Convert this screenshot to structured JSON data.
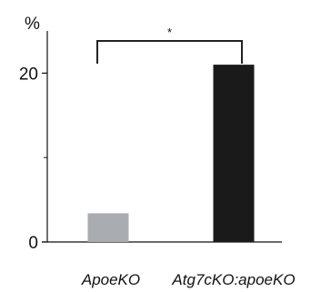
{
  "chart_data": {
    "type": "bar",
    "unit_label": "%",
    "categories": [
      "ApoeKO",
      "Atg7cKO:apoeKO"
    ],
    "values": [
      3.4,
      21.0
    ],
    "colors": [
      "#a9adb2",
      "#1a1a1a"
    ],
    "ylim": [
      0,
      25
    ],
    "yticks": [
      0,
      20
    ],
    "yticks_minor": [
      10
    ],
    "grid": false,
    "significance": {
      "from": 0,
      "to": 1,
      "label": "*"
    }
  }
}
